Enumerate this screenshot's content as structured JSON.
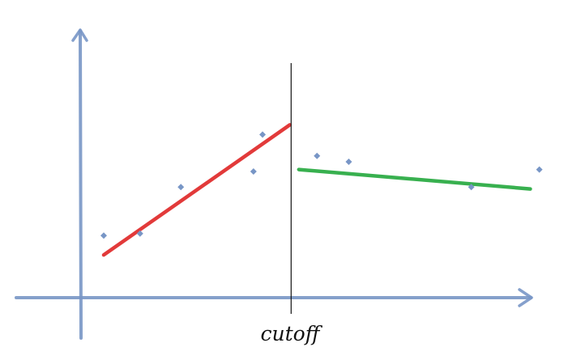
{
  "chart_data": {
    "type": "scatter",
    "title": "",
    "xlabel": "",
    "ylabel": "",
    "xlim": [
      0,
      10
    ],
    "ylim": [
      0,
      10
    ],
    "grid": false,
    "cutoff": {
      "x": 4.63,
      "label": "cutoff"
    },
    "series": [
      {
        "values": [
          {
            "x": 0.5,
            "y": 3.2
          },
          {
            "x": 1.3,
            "y": 3.3
          },
          {
            "x": 2.2,
            "y": 5.7
          },
          {
            "x": 3.8,
            "y": 6.5
          },
          {
            "x": 4.0,
            "y": 8.4
          },
          {
            "x": 5.2,
            "y": 7.3
          },
          {
            "x": 5.9,
            "y": 7.0
          },
          {
            "x": 8.6,
            "y": 5.7
          },
          {
            "x": 10.1,
            "y": 6.6
          }
        ],
        "color": "#7896c6"
      }
    ],
    "fit_lines": [
      {
        "segment": "left",
        "color": "#e23a3a",
        "from": {
          "x": 0.5,
          "y": 2.2
        },
        "to": {
          "x": 4.6,
          "y": 8.9
        }
      },
      {
        "segment": "right",
        "color": "#38b04f",
        "from": {
          "x": 4.8,
          "y": 6.6
        },
        "to": {
          "x": 9.9,
          "y": 5.6
        }
      }
    ],
    "axis_color": "#7896c6"
  }
}
